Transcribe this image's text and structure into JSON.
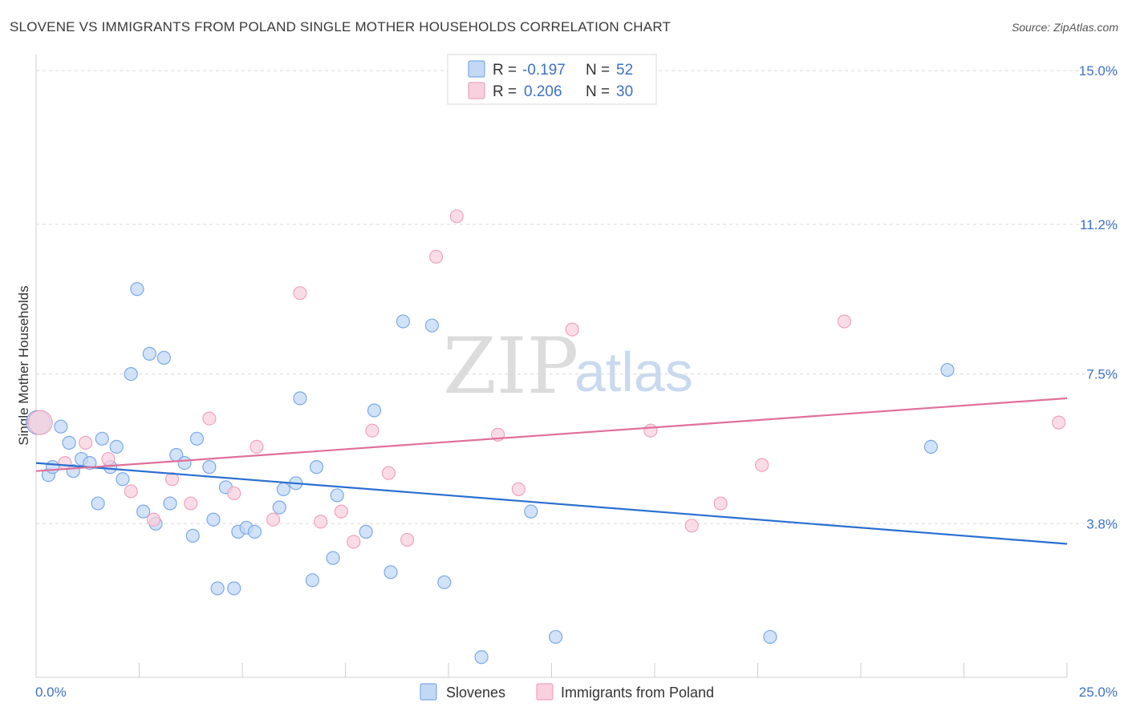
{
  "chart_data": {
    "type": "scatter",
    "title": "SLOVENE VS IMMIGRANTS FROM POLAND SINGLE MOTHER HOUSEHOLDS CORRELATION CHART",
    "source": "Source: ZipAtlas.com",
    "ylabel": "Single Mother Households",
    "xlim": [
      0,
      25
    ],
    "ylim": [
      0,
      15.4
    ],
    "x_tick_labels": [
      "0.0%",
      "25.0%"
    ],
    "y_ticks": [
      {
        "value": 15.0,
        "label": "15.0%"
      },
      {
        "value": 11.2,
        "label": "11.2%"
      },
      {
        "value": 7.5,
        "label": "7.5%"
      },
      {
        "value": 3.8,
        "label": "3.8%"
      }
    ],
    "watermark": {
      "zip": "ZIP",
      "atlas": "atlas"
    },
    "legend": {
      "rows": [
        {
          "r_label": "R =",
          "r_value": "-0.197",
          "n_label": "N =",
          "n_value": "52"
        },
        {
          "r_label": "R =",
          "r_value": "0.206",
          "n_label": "N =",
          "n_value": "30"
        }
      ]
    },
    "series": [
      {
        "name": "Slovenes",
        "color": "#7aaae8",
        "fill": "#c3d8f5",
        "trend_color": "#2a6fd1",
        "trend": {
          "x0": 0,
          "y0": 5.3,
          "x1": 25,
          "y1": 3.3
        },
        "points": [
          [
            0.05,
            6.3
          ],
          [
            0.3,
            5.0
          ],
          [
            0.4,
            5.2
          ],
          [
            0.6,
            6.2
          ],
          [
            0.8,
            5.8
          ],
          [
            0.9,
            5.1
          ],
          [
            1.1,
            5.4
          ],
          [
            1.3,
            5.3
          ],
          [
            1.5,
            4.3
          ],
          [
            1.6,
            5.9
          ],
          [
            1.8,
            5.2
          ],
          [
            1.95,
            5.7
          ],
          [
            2.1,
            4.9
          ],
          [
            2.3,
            7.5
          ],
          [
            2.45,
            9.6
          ],
          [
            2.6,
            4.1
          ],
          [
            2.75,
            8.0
          ],
          [
            2.9,
            3.8
          ],
          [
            3.1,
            7.9
          ],
          [
            3.25,
            4.3
          ],
          [
            3.4,
            5.5
          ],
          [
            3.6,
            5.3
          ],
          [
            3.8,
            3.5
          ],
          [
            3.9,
            5.9
          ],
          [
            4.2,
            5.2
          ],
          [
            4.3,
            3.9
          ],
          [
            4.4,
            2.2
          ],
          [
            4.6,
            4.7
          ],
          [
            4.8,
            2.2
          ],
          [
            4.9,
            3.6
          ],
          [
            5.1,
            3.7
          ],
          [
            5.3,
            3.6
          ],
          [
            5.9,
            4.2
          ],
          [
            6.0,
            4.65
          ],
          [
            6.3,
            4.8
          ],
          [
            6.4,
            6.9
          ],
          [
            6.7,
            2.4
          ],
          [
            6.8,
            5.2
          ],
          [
            7.2,
            2.95
          ],
          [
            7.3,
            4.5
          ],
          [
            8.0,
            3.6
          ],
          [
            8.2,
            6.6
          ],
          [
            8.6,
            2.6
          ],
          [
            8.9,
            8.8
          ],
          [
            9.6,
            8.7
          ],
          [
            9.9,
            2.35
          ],
          [
            10.8,
            0.5
          ],
          [
            12.0,
            4.1
          ],
          [
            12.6,
            1.0
          ],
          [
            17.8,
            1.0
          ],
          [
            21.7,
            5.7
          ],
          [
            22.1,
            7.6
          ]
        ]
      },
      {
        "name": "Immigrants from Poland",
        "color": "#f0a3bd",
        "fill": "#f8d0de",
        "trend_color": "#e0709a",
        "trend": {
          "x0": 0,
          "y0": 5.1,
          "x1": 25,
          "y1": 6.9
        },
        "points": [
          [
            0.1,
            6.3
          ],
          [
            0.7,
            5.3
          ],
          [
            1.2,
            5.8
          ],
          [
            1.75,
            5.4
          ],
          [
            2.3,
            4.6
          ],
          [
            2.85,
            3.9
          ],
          [
            3.3,
            4.9
          ],
          [
            3.75,
            4.3
          ],
          [
            4.2,
            6.4
          ],
          [
            4.8,
            4.55
          ],
          [
            5.35,
            5.7
          ],
          [
            5.75,
            3.9
          ],
          [
            6.4,
            9.5
          ],
          [
            6.9,
            3.85
          ],
          [
            7.4,
            4.1
          ],
          [
            7.7,
            3.35
          ],
          [
            8.15,
            6.1
          ],
          [
            8.55,
            5.05
          ],
          [
            9.0,
            3.4
          ],
          [
            9.7,
            10.4
          ],
          [
            10.2,
            11.4
          ],
          [
            11.2,
            6.0
          ],
          [
            11.7,
            4.65
          ],
          [
            13.0,
            8.6
          ],
          [
            14.9,
            6.1
          ],
          [
            15.9,
            3.75
          ],
          [
            16.6,
            4.3
          ],
          [
            17.6,
            5.25
          ],
          [
            19.6,
            8.8
          ],
          [
            24.8,
            6.3
          ]
        ]
      }
    ]
  }
}
